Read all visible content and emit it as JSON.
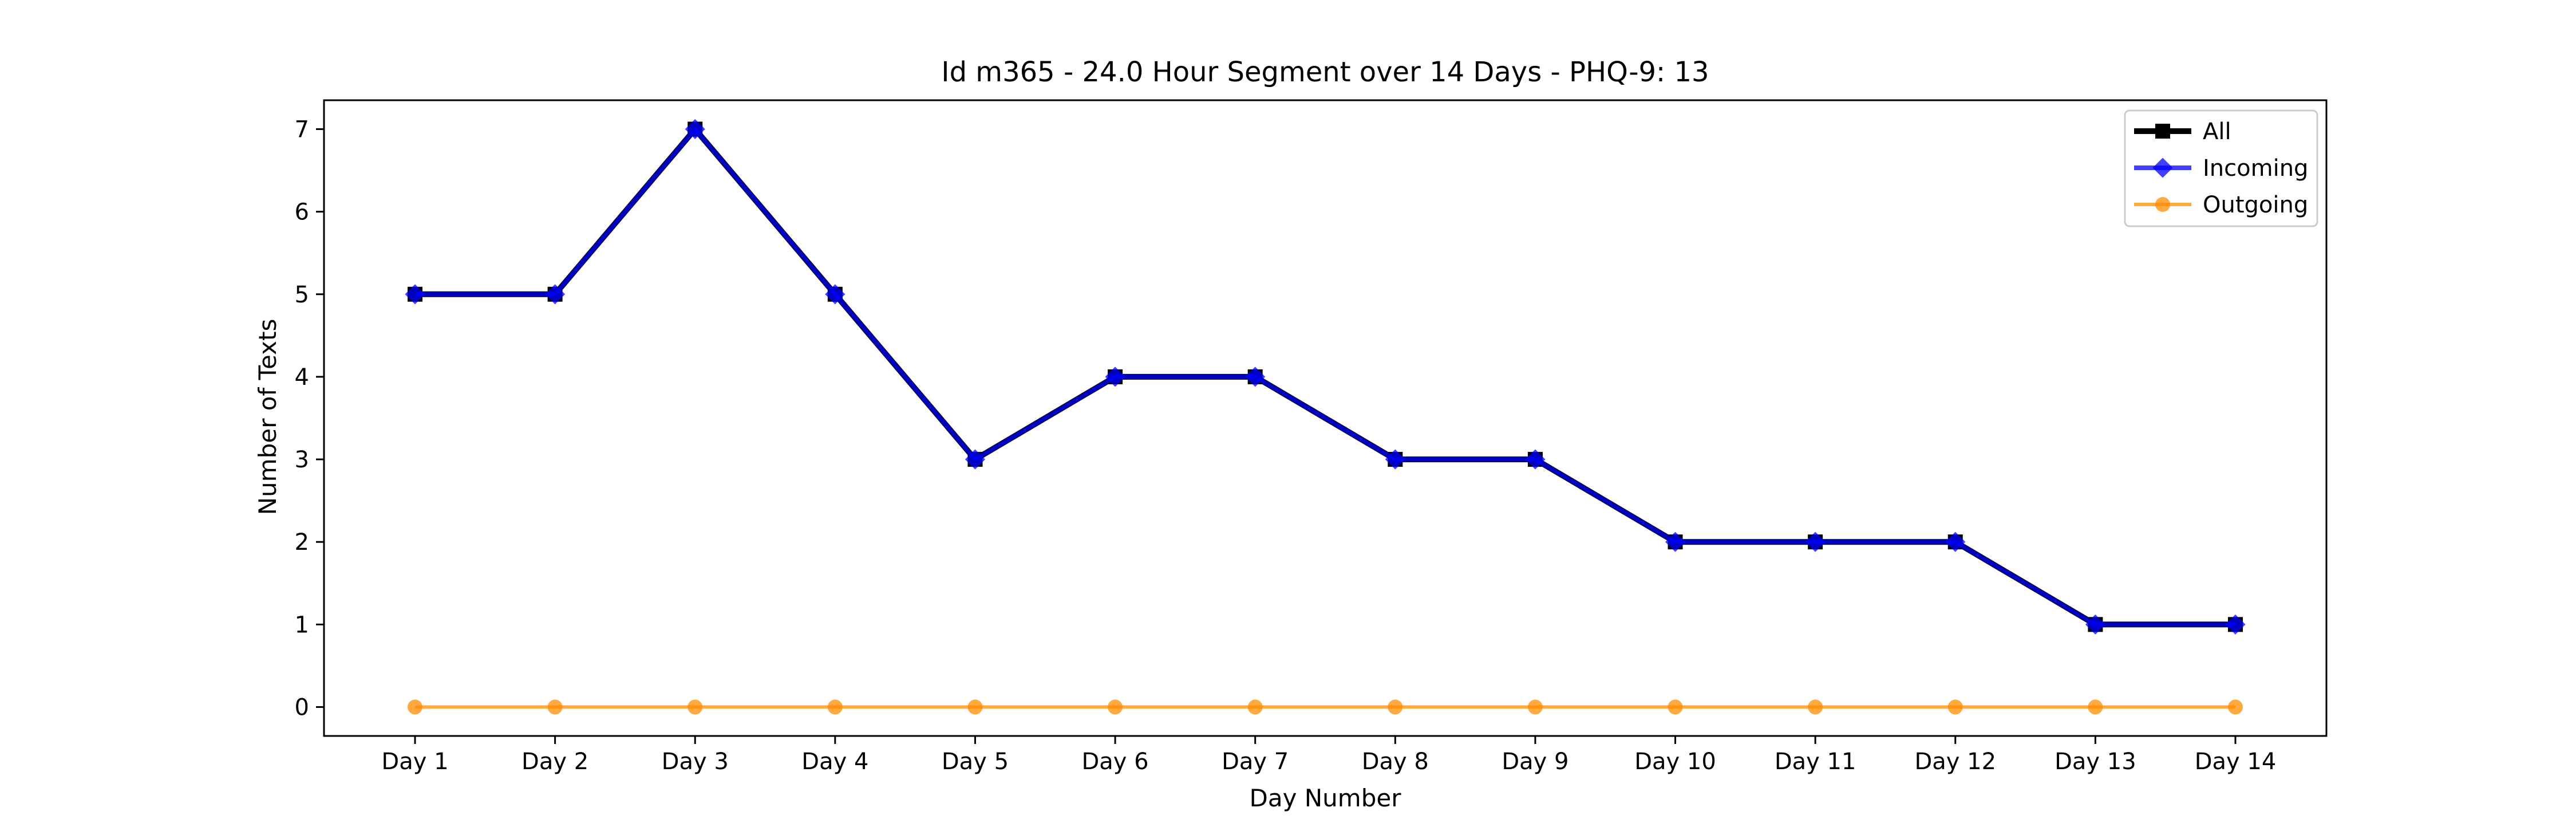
{
  "chart_data": {
    "type": "line",
    "title": "Id m365 - 24.0 Hour Segment over 14 Days - PHQ-9: 13",
    "xlabel": "Day Number",
    "ylabel": "Number of Texts",
    "categories": [
      "Day 1",
      "Day 2",
      "Day 3",
      "Day 4",
      "Day 5",
      "Day 6",
      "Day 7",
      "Day 8",
      "Day 9",
      "Day 10",
      "Day 11",
      "Day 12",
      "Day 13",
      "Day 14"
    ],
    "yticks": [
      0,
      1,
      2,
      3,
      4,
      5,
      6,
      7
    ],
    "ylim": [
      -0.35,
      7.35
    ],
    "grid": false,
    "legend_position": "top-right",
    "series": [
      {
        "name": "All",
        "color": "#000000",
        "marker": "square",
        "values": [
          5,
          5,
          7,
          5,
          3,
          4,
          4,
          3,
          3,
          2,
          2,
          2,
          1,
          1
        ]
      },
      {
        "name": "Incoming",
        "color": "#0000ff",
        "marker": "diamond",
        "values": [
          5,
          5,
          7,
          5,
          3,
          4,
          4,
          3,
          3,
          2,
          2,
          2,
          1,
          1
        ]
      },
      {
        "name": "Outgoing",
        "color": "#ff8c00",
        "marker": "circle",
        "values": [
          0,
          0,
          0,
          0,
          0,
          0,
          0,
          0,
          0,
          0,
          0,
          0,
          0,
          0
        ]
      }
    ]
  }
}
